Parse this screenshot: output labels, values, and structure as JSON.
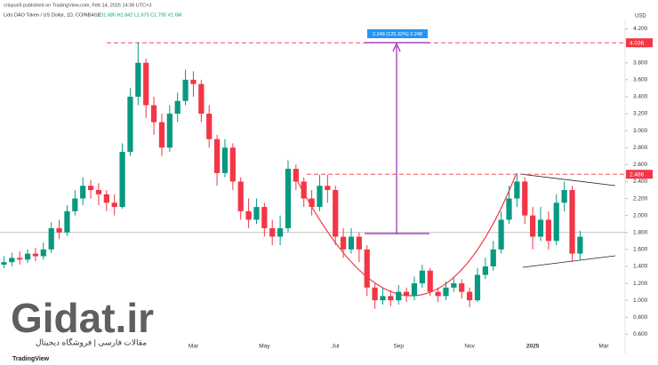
{
  "chart_data": {
    "type": "candlestick",
    "publisher": "crispus9 published on TradingView.com, Feb 14, 2025 14:36 UTC+3",
    "title": "Lido DAO Token / US Dollar, 1D, COINBASE",
    "ohlc_text": "O1.685 H1.842 L1.675 C1.795 V1.6M",
    "currency": "USD",
    "measure_label": "2.248 (125.32%) 2.248",
    "watermark": "Gidat.ir",
    "watermark_sub": "مقالات فارسی | فروشگاه دیجیتال",
    "logo": "TradingView",
    "up_color": "#089981",
    "down_color": "#f23645",
    "categories": [
      null,
      null,
      null,
      null,
      null,
      null,
      null,
      null,
      null,
      null,
      null,
      null,
      null,
      null,
      null,
      null,
      null,
      null,
      null,
      null,
      null,
      null,
      null,
      null,
      "Mar",
      null,
      null,
      null,
      null,
      null,
      null,
      null,
      null,
      "May",
      null,
      null,
      null,
      null,
      null,
      null,
      null,
      null,
      "Jul",
      null,
      null,
      null,
      null,
      null,
      null,
      null,
      "Sep",
      null,
      null,
      null,
      null,
      null,
      null,
      null,
      null,
      "Nov",
      null,
      null,
      null,
      null,
      null,
      null,
      null,
      "2025",
      null,
      null,
      null,
      null,
      null,
      null,
      null,
      null,
      "Mar",
      null
    ],
    "open": [
      1.42,
      1.45,
      1.5,
      1.48,
      1.55,
      1.52,
      1.6,
      1.85,
      1.8,
      2.05,
      2.2,
      2.35,
      2.3,
      2.25,
      2.15,
      2.1,
      2.75,
      3.4,
      3.8,
      3.3,
      3.1,
      2.8,
      3.2,
      3.35,
      3.6,
      3.55,
      3.2,
      2.9,
      2.5,
      2.8,
      2.4,
      2.05,
      1.95,
      2.1,
      1.85,
      1.75,
      1.85,
      2.55,
      2.4,
      2.2,
      2.1,
      2.35,
      2.3,
      1.75,
      1.6,
      1.75,
      1.6,
      1.15,
      1.0,
      1.05,
      1.0,
      1.1,
      1.05,
      1.2,
      1.35,
      1.1,
      1.05,
      1.15,
      1.2,
      1.1,
      1.0,
      1.3,
      1.4,
      1.6,
      1.95,
      2.2,
      2.4,
      2.0,
      1.75,
      1.95,
      1.7,
      2.15,
      2.3,
      1.55,
      null,
      null,
      null,
      null
    ],
    "high": [
      1.52,
      1.56,
      1.58,
      1.6,
      1.62,
      1.68,
      1.92,
      1.95,
      2.12,
      2.3,
      2.45,
      2.42,
      2.38,
      2.3,
      2.25,
      2.85,
      3.5,
      4.04,
      3.85,
      3.4,
      3.2,
      3.3,
      3.45,
      3.72,
      3.7,
      3.6,
      3.3,
      2.95,
      2.9,
      2.85,
      2.45,
      2.2,
      2.2,
      2.15,
      1.95,
      2.0,
      2.65,
      2.6,
      2.45,
      2.3,
      2.48,
      2.48,
      2.35,
      1.85,
      1.85,
      1.8,
      1.65,
      1.2,
      1.15,
      1.12,
      1.18,
      1.15,
      1.28,
      1.42,
      1.38,
      1.15,
      1.22,
      1.28,
      1.25,
      1.15,
      1.38,
      1.5,
      1.7,
      2.05,
      2.35,
      2.5,
      2.45,
      2.1,
      2.1,
      2.05,
      2.25,
      2.4,
      2.35,
      1.82,
      null,
      null,
      null,
      null
    ],
    "low": [
      1.38,
      1.4,
      1.42,
      1.44,
      1.46,
      1.48,
      1.56,
      1.72,
      1.76,
      2.0,
      2.12,
      2.2,
      2.12,
      2.05,
      2.0,
      2.08,
      2.7,
      3.3,
      3.15,
      2.95,
      2.7,
      2.75,
      3.1,
      3.3,
      3.4,
      3.1,
      2.8,
      2.35,
      2.45,
      2.3,
      1.95,
      1.85,
      1.9,
      1.75,
      1.65,
      1.65,
      1.8,
      2.3,
      2.1,
      2.0,
      2.05,
      2.15,
      1.65,
      1.5,
      1.55,
      1.45,
      1.05,
      0.9,
      0.95,
      0.93,
      0.95,
      0.98,
      1.0,
      1.15,
      1.05,
      0.98,
      1.0,
      1.1,
      1.02,
      0.92,
      0.98,
      1.25,
      1.35,
      1.55,
      1.9,
      2.1,
      1.9,
      1.6,
      1.7,
      1.6,
      1.65,
      2.05,
      1.45,
      1.48,
      null,
      null,
      null,
      null
    ],
    "close": [
      1.45,
      1.5,
      1.48,
      1.55,
      1.52,
      1.6,
      1.85,
      1.8,
      2.05,
      2.2,
      2.35,
      2.3,
      2.25,
      2.15,
      2.1,
      2.75,
      3.4,
      3.8,
      3.3,
      3.1,
      2.8,
      3.2,
      3.35,
      3.6,
      3.55,
      3.2,
      2.9,
      2.5,
      2.8,
      2.4,
      2.05,
      1.95,
      2.1,
      1.85,
      1.75,
      1.85,
      2.55,
      2.4,
      2.2,
      2.1,
      2.35,
      2.3,
      1.75,
      1.6,
      1.75,
      1.6,
      1.15,
      1.0,
      1.05,
      1.0,
      1.1,
      1.05,
      1.2,
      1.35,
      1.1,
      1.05,
      1.15,
      1.2,
      1.1,
      1.0,
      1.3,
      1.4,
      1.6,
      1.95,
      2.2,
      2.4,
      2.0,
      1.75,
      1.95,
      1.7,
      2.15,
      2.3,
      1.55,
      1.75,
      null,
      null,
      null,
      null
    ],
    "price_lines": [
      {
        "value": 4.036,
        "color": "#f23645"
      },
      {
        "value": 2.486,
        "color": "#f23645"
      }
    ],
    "hline": 1.8,
    "ylim": [
      0.52,
      4.31
    ],
    "yticks": [
      {
        "value": 0.6,
        "label": "0.600"
      },
      {
        "value": 0.8,
        "label": "0.800"
      },
      {
        "value": 1.0,
        "label": "1.000"
      },
      {
        "value": 1.2,
        "label": "1.200"
      },
      {
        "value": 1.4,
        "label": "1.400"
      },
      {
        "value": 1.6,
        "label": "1.600"
      },
      {
        "value": 1.8,
        "label": "1.800"
      },
      {
        "value": 2.0,
        "label": "2.000"
      },
      {
        "value": 2.2,
        "label": "2.200"
      },
      {
        "value": 2.4,
        "label": "2.400"
      },
      {
        "value": 2.6,
        "label": "2.600"
      },
      {
        "value": 2.8,
        "label": "2.800"
      },
      {
        "value": 3.0,
        "label": "3.000"
      },
      {
        "value": 3.2,
        "label": "3.200"
      },
      {
        "value": 3.4,
        "label": "3.400"
      },
      {
        "value": 3.6,
        "label": "3.600"
      },
      {
        "value": 3.8,
        "label": "3.800"
      },
      {
        "value": 4.0,
        "label": "4.000"
      },
      {
        "value": 4.2,
        "label": "4.200"
      }
    ]
  }
}
